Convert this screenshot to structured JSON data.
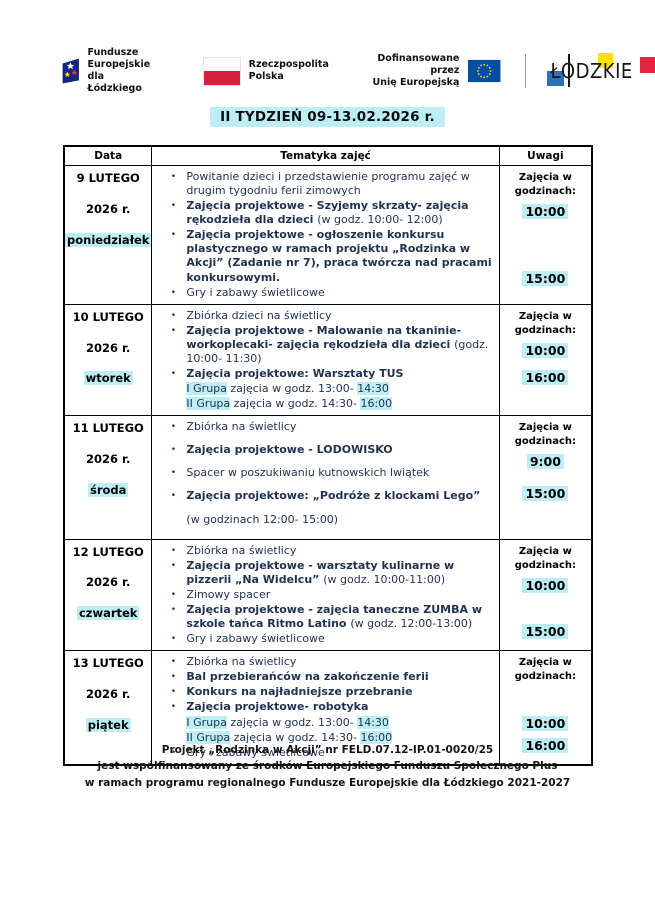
{
  "colors": {
    "highlight": "#bdeef6",
    "body_text": "#1f3250"
  },
  "header": {
    "logo_fe": {
      "line1": "Fundusze Europejskie",
      "line2": "dla Łódzkiego"
    },
    "logo_pl": {
      "line1": "Rzeczpospolita",
      "line2": "Polska"
    },
    "logo_eu": {
      "line1": "Dofinansowane przez",
      "line2": "Unię Europejską"
    },
    "logo_lodzkie": {
      "part1": "Ł",
      "part2": "DZKIE"
    },
    "title": "II TYDZIEŃ  09-13.02.2026 r."
  },
  "table": {
    "columns": [
      "Data",
      "Tematyka zajęć",
      "Uwagi"
    ],
    "uwagi_label": "Zajęcia w godzinach:",
    "rows": [
      {
        "date": [
          {
            "t": "9 LUTEGO",
            "h": false
          },
          {
            "t": "2026 r.",
            "h": false
          },
          {
            "t": "poniedziałek",
            "h": true
          }
        ],
        "items": [
          {
            "bullet": true,
            "segments": [
              {
                "t": "Powitanie dzieci i przedstawienie programu zajęć w drugim tygodniu ferii zimowych",
                "b": false,
                "h": false
              }
            ]
          },
          {
            "bullet": true,
            "segments": [
              {
                "t": "Zajęcia projektowe - Szyjemy skrzaty- zajęcia rękodzieła dla dzieci ",
                "b": true,
                "h": false
              },
              {
                "t": "(w godz. 10:00- 12:00)",
                "b": false,
                "h": false
              }
            ]
          },
          {
            "bullet": true,
            "segments": [
              {
                "t": "Zajęcia projektowe - ogłoszenie konkursu plastycznego w ramach projektu  „Rodzinka w Akcji” (Zadanie nr 7), praca twórcza nad pracami konkursowymi.",
                "b": true,
                "h": false
              }
            ]
          },
          {
            "bullet": true,
            "segments": [
              {
                "t": "Gry i zabawy świetlicowe",
                "b": false,
                "h": false
              }
            ]
          }
        ],
        "times": [
          "10:00",
          "15:00"
        ]
      },
      {
        "date": [
          {
            "t": "10 LUTEGO",
            "h": false
          },
          {
            "t": "2026 r.",
            "h": false
          },
          {
            "t": "wtorek",
            "h": true
          }
        ],
        "items": [
          {
            "bullet": true,
            "segments": [
              {
                "t": "Zbiórka dzieci na świetlicy",
                "b": false,
                "h": false
              }
            ]
          },
          {
            "bullet": true,
            "segments": [
              {
                "t": "Zajęcia projektowe - Malowanie na tkaninie- workoplecaki- zajęcia rękodzieła dla dzieci ",
                "b": true,
                "h": false
              },
              {
                "t": "(godz. 10:00- 11:30)",
                "b": false,
                "h": false
              }
            ]
          },
          {
            "bullet": true,
            "segments": [
              {
                "t": " Zajęcia projektowe: Warsztaty TUS",
                "b": true,
                "h": false
              }
            ]
          },
          {
            "bullet": false,
            "segments": [
              {
                "t": "I Grupa",
                "b": false,
                "h": true
              },
              {
                "t": " zajęcia w godz. 13:00- ",
                "b": false,
                "h": false
              },
              {
                "t": "14:30",
                "b": false,
                "h": true
              }
            ]
          },
          {
            "bullet": false,
            "segments": [
              {
                "t": "II Grupa",
                "b": false,
                "h": true
              },
              {
                "t": "  zajęcia w godz. 14:30- ",
                "b": false,
                "h": false
              },
              {
                "t": "16:00",
                "b": false,
                "h": true
              }
            ]
          }
        ],
        "times": [
          "10:00",
          "16:00"
        ]
      },
      {
        "date": [
          {
            "t": "11 LUTEGO",
            "h": false
          },
          {
            "t": "2026 r.",
            "h": false
          },
          {
            "t": "środa",
            "h": true
          }
        ],
        "items": [
          {
            "bullet": true,
            "segments": [
              {
                "t": "Zbiórka na świetlicy",
                "b": false,
                "h": false
              }
            ]
          },
          {
            "bullet": true,
            "segments": [
              {
                "t": "Zajęcia projektowe - LODOWISKO",
                "b": true,
                "h": false
              }
            ]
          },
          {
            "bullet": true,
            "segments": [
              {
                "t": "Spacer w poszukiwaniu kutnowskich lwiątek",
                "b": false,
                "h": false
              }
            ]
          },
          {
            "bullet": true,
            "segments": [
              {
                "t": "Zajęcia projektowe: „Podróże z klockami Lego”",
                "b": true,
                "h": false
              }
            ]
          },
          {
            "bullet": false,
            "segments": [
              {
                "t": "(w godzinach 12:00- 15:00)",
                "b": false,
                "h": false
              }
            ]
          }
        ],
        "times": [
          "9:00",
          "15:00"
        ]
      },
      {
        "date": [
          {
            "t": "12 LUTEGO",
            "h": false
          },
          {
            "t": "2026 r.",
            "h": false
          },
          {
            "t": "czwartek",
            "h": true
          }
        ],
        "items": [
          {
            "bullet": true,
            "segments": [
              {
                "t": "Zbiórka na świetlicy",
                "b": false,
                "h": false
              }
            ]
          },
          {
            "bullet": true,
            "segments": [
              {
                "t": "Zajęcia projektowe - warsztaty kulinarne w pizzerii „Na Widelcu”  ",
                "b": true,
                "h": false
              },
              {
                "t": "(w godz. 10:00-11:00)",
                "b": false,
                "h": false
              }
            ]
          },
          {
            "bullet": true,
            "segments": [
              {
                "t": "Zimowy spacer",
                "b": false,
                "h": false
              }
            ]
          },
          {
            "bullet": true,
            "segments": [
              {
                "t": "Zajęcia projektowe - zajęcia taneczne ZUMBA w szkole tańca Ritmo Latino  ",
                "b": true,
                "h": false
              },
              {
                "t": "(w godz. 12:00-13:00)",
                "b": false,
                "h": false
              }
            ]
          },
          {
            "bullet": true,
            "segments": [
              {
                "t": "Gry i zabawy świetlicowe",
                "b": false,
                "h": false
              }
            ]
          }
        ],
        "times": [
          "10:00",
          "15:00"
        ]
      },
      {
        "date": [
          {
            "t": "13 LUTEGO",
            "h": false
          },
          {
            "t": "2026 r.",
            "h": false
          },
          {
            "t": "piątek",
            "h": true
          }
        ],
        "items": [
          {
            "bullet": true,
            "segments": [
              {
                "t": "Zbiórka na świetlicy",
                "b": false,
                "h": false
              }
            ]
          },
          {
            "bullet": true,
            "segments": [
              {
                "t": "Bal przebierańców na zakończenie ferii",
                "b": true,
                "h": false
              }
            ]
          },
          {
            "bullet": true,
            "segments": [
              {
                "t": "Konkurs na najładniejsze przebranie",
                "b": true,
                "h": false
              }
            ]
          },
          {
            "bullet": true,
            "segments": [
              {
                "t": "Zajęcia projektowe- robotyka",
                "b": true,
                "h": false
              }
            ]
          },
          {
            "bullet": false,
            "segments": [
              {
                "t": "I Grupa",
                "b": false,
                "h": true
              },
              {
                "t": " zajęcia w godz. 13:00- ",
                "b": false,
                "h": false
              },
              {
                "t": "14:30",
                "b": false,
                "h": true
              }
            ]
          },
          {
            "bullet": false,
            "segments": [
              {
                "t": "II Grupa",
                "b": false,
                "h": true
              },
              {
                "t": "  zajęcia w godz. 14:30- ",
                "b": false,
                "h": false
              },
              {
                "t": "16:00",
                "b": false,
                "h": true
              }
            ]
          },
          {
            "bullet": true,
            "segments": [
              {
                "t": "Gry i zabawy świetlicowe",
                "b": false,
                "h": false
              }
            ]
          }
        ],
        "times": [
          "10:00",
          "16:00"
        ]
      }
    ]
  },
  "footer": {
    "line1": "Projekt „Rodzinka w Akcji” nr FELD.07.12-IP.01-0020/25",
    "line2": "jest współfinansowany ze środków Europejskiego Funduszu Społecznego Plus",
    "line3": "w ramach programu regionalnego Fundusze Europejskie dla Łódzkiego 2021-2027"
  }
}
